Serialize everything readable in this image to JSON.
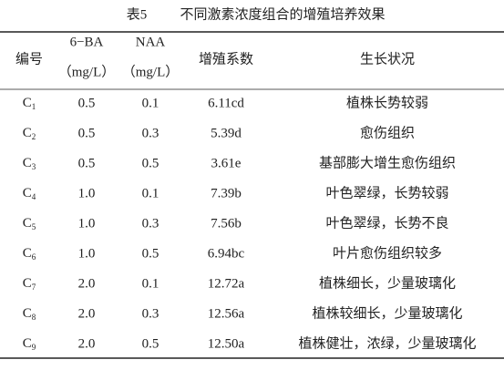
{
  "caption": {
    "label": "表5",
    "title": "不同激素浓度组合的增殖培养效果"
  },
  "table": {
    "header": [
      [
        "编号"
      ],
      [
        "6−BA",
        "（mg/L）"
      ],
      [
        "NAA",
        "（mg/L）"
      ],
      [
        "增殖系数"
      ],
      [
        "生长状况"
      ]
    ],
    "rows": [
      [
        {
          "base": "C",
          "sub": "1"
        },
        "0.5",
        "0.1",
        "6.11cd",
        "植株长势较弱"
      ],
      [
        {
          "base": "C",
          "sub": "2"
        },
        "0.5",
        "0.3",
        "5.39d",
        "愈伤组织"
      ],
      [
        {
          "base": "C",
          "sub": "3"
        },
        "0.5",
        "0.5",
        "3.61e",
        "基部膨大增生愈伤组织"
      ],
      [
        {
          "base": "C",
          "sub": "4"
        },
        "1.0",
        "0.1",
        "7.39b",
        "叶色翠绿，长势较弱"
      ],
      [
        {
          "base": "C",
          "sub": "5"
        },
        "1.0",
        "0.3",
        "7.56b",
        "叶色翠绿，长势不良"
      ],
      [
        {
          "base": "C",
          "sub": "6"
        },
        "1.0",
        "0.5",
        "6.94bc",
        "叶片愈伤组织较多"
      ],
      [
        {
          "base": "C",
          "sub": "7"
        },
        "2.0",
        "0.1",
        "12.72a",
        "植株细长，少量玻璃化"
      ],
      [
        {
          "base": "C",
          "sub": "8"
        },
        "2.0",
        "0.3",
        "12.56a",
        "植株较细长，少量玻璃化"
      ],
      [
        {
          "base": "C",
          "sub": "9"
        },
        "2.0",
        "0.5",
        "12.50a",
        "植株健壮，浓绿，少量玻璃化"
      ]
    ]
  }
}
